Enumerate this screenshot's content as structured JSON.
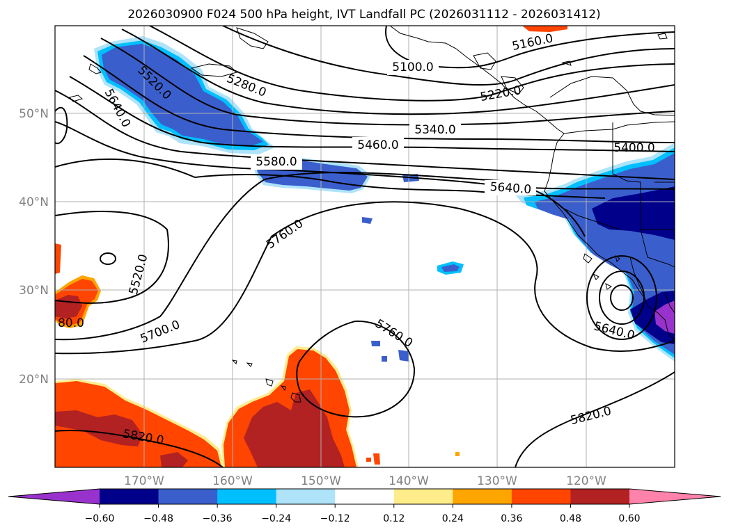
{
  "title": "2026030900 F024 500 hPa height, IVT Landfall PC (2026031112 - 2026031412)",
  "lon_labels": [
    "170°W",
    "160°W",
    "150°W",
    "140°W",
    "130°W",
    "120°W"
  ],
  "lat_labels": [
    "50°N",
    "40°N",
    "30°N",
    "20°N"
  ],
  "contour_labels": [
    "5100.0",
    "5160.0",
    "5220.0",
    "5280.0",
    "5340.0",
    "5400.0",
    "5460.0",
    "5520.0",
    "5640.0",
    "5580.0",
    "5640.0",
    "5760.0",
    "5520.0",
    "5700.0",
    "80.0",
    "5760.0",
    "5640.0",
    "5820.0",
    "5820.0"
  ],
  "colorbar": {
    "ticks": [
      "-0.60",
      "-0.48",
      "-0.36",
      "-0.24",
      "-0.12",
      "0.12",
      "0.24",
      "0.36",
      "0.48",
      "0.60"
    ],
    "colors": [
      "#9932cc",
      "#00008b",
      "#3a5fcd",
      "#00bfff",
      "#aee3fa",
      "#ffffff",
      "#ffec8b",
      "#ffa500",
      "#ff4500",
      "#b22222",
      "#ff82ab"
    ]
  },
  "fill_colors": {
    "light_blue": "#aee3fa",
    "sky": "#00bfff",
    "royal": "#3a5fcd",
    "navy": "#00008b",
    "purple": "#9932cc",
    "yellow": "#ffec8b",
    "orange": "#ffa500",
    "orange_red": "#ff4500",
    "firebrick": "#b22222"
  }
}
